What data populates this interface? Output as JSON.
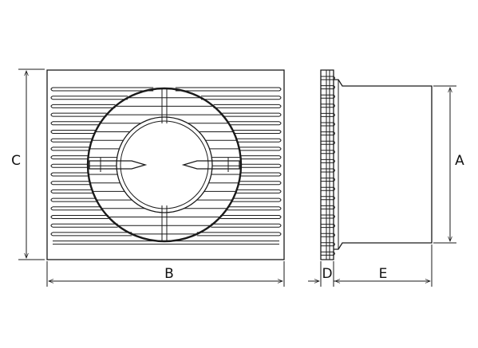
{
  "drawing": {
    "dimension_labels": {
      "a": "A",
      "b": "B",
      "c": "C",
      "d": "D",
      "e": "E"
    },
    "line_color": "#1a1a1a",
    "background": "#ffffff"
  }
}
